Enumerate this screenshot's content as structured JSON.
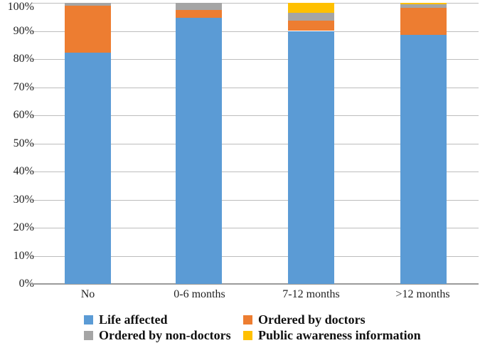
{
  "chart_data": {
    "type": "bar",
    "stacked": true,
    "stacked_mode": "percent",
    "title": "",
    "xlabel": "",
    "ylabel": "",
    "ylim": [
      0,
      100
    ],
    "grid": true,
    "legend_position": "bottom",
    "categories": [
      "No",
      "0-6 months",
      "7-12 months",
      ">12 months"
    ],
    "series": [
      {
        "name": "Life affected",
        "color": "#5B9BD5",
        "values": [
          82.3,
          94.6,
          90.0,
          88.7
        ]
      },
      {
        "name": "Ordered by doctors",
        "color": "#ED7D31",
        "values": [
          16.6,
          2.8,
          3.6,
          9.6
        ]
      },
      {
        "name": "Ordered by non-doctors",
        "color": "#A5A5A5",
        "values": [
          1.1,
          2.6,
          2.8,
          1.2
        ]
      },
      {
        "name": "Public awareness information",
        "color": "#FFC000",
        "values": [
          0,
          0,
          3.6,
          0.5
        ]
      }
    ],
    "y_ticks": [
      "0%",
      "10%",
      "20%",
      "30%",
      "40%",
      "50%",
      "60%",
      "70%",
      "80%",
      "90%",
      "100%"
    ],
    "colors": {
      "gridline": "#BDBDBD",
      "axis_line": "#9B9B9B",
      "text": "#1F1F1F"
    }
  }
}
